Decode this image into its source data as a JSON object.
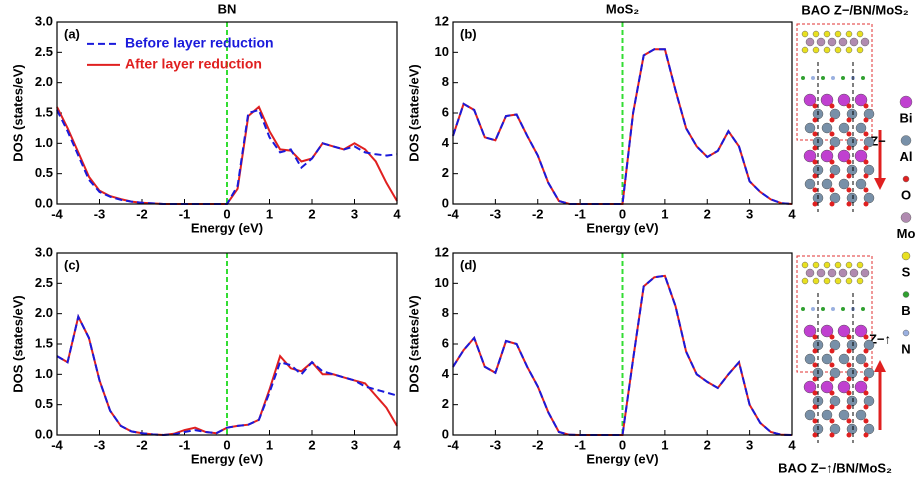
{
  "chart_data": [
    {
      "type": "line",
      "title": "BN",
      "panel_label": "(a)",
      "xlabel": "Energy (eV)",
      "ylabel": "DOS (states/eV)",
      "x": [
        -4,
        -3.75,
        -3.5,
        -3.25,
        -3,
        -2.75,
        -2.5,
        -2.25,
        -2,
        -1.75,
        -1.5,
        -1.25,
        -1,
        -0.75,
        -0.5,
        -0.25,
        0,
        0.25,
        0.5,
        0.75,
        1,
        1.25,
        1.5,
        1.75,
        2,
        2.25,
        2.5,
        2.75,
        3,
        3.25,
        3.5,
        3.75,
        4
      ],
      "xlim": [
        -4,
        4
      ],
      "xticks": [
        -4,
        -3,
        -2,
        -1,
        0,
        1,
        2,
        3,
        4
      ],
      "ylim": [
        0,
        3
      ],
      "yticks": [
        {
          "value": 0,
          "label": "0.0"
        },
        {
          "value": 0.5,
          "label": "0.5"
        },
        {
          "value": 1,
          "label": "1.0"
        },
        {
          "value": 1.5,
          "label": "1.5"
        },
        {
          "value": 2,
          "label": "2.0"
        },
        {
          "value": 2.5,
          "label": "2.5"
        },
        {
          "value": 3,
          "label": "3.0"
        }
      ],
      "vline": 0,
      "vline_color": "#33dd33",
      "legend": "upper left",
      "series": [
        {
          "name": "Before layer reduction",
          "color": "#1a1adb",
          "dash": true,
          "values": [
            1.55,
            1.2,
            0.8,
            0.4,
            0.2,
            0.12,
            0.07,
            0.04,
            0.02,
            0.01,
            0,
            0,
            0,
            0,
            0,
            0,
            0,
            0.3,
            1.5,
            1.55,
            1.1,
            0.85,
            0.9,
            0.6,
            0.75,
            1.0,
            0.95,
            0.9,
            0.95,
            0.85,
            0.82,
            0.8,
            0.82
          ]
        },
        {
          "name": "After layer reduction",
          "color": "#e02020",
          "dash": false,
          "values": [
            1.6,
            1.25,
            0.85,
            0.45,
            0.22,
            0.13,
            0.08,
            0.04,
            0.02,
            0.01,
            0,
            0,
            0,
            0,
            0,
            0,
            0,
            0.25,
            1.45,
            1.6,
            1.2,
            0.9,
            0.88,
            0.7,
            0.75,
            1.0,
            0.95,
            0.9,
            1.0,
            0.9,
            0.7,
            0.35,
            0.05
          ]
        }
      ]
    },
    {
      "type": "line",
      "title": "MoS₂",
      "panel_label": "(b)",
      "xlabel": "Energy (eV)",
      "ylabel": "DOS (states/eV)",
      "x": [
        -4,
        -3.75,
        -3.5,
        -3.25,
        -3,
        -2.75,
        -2.5,
        -2.25,
        -2,
        -1.75,
        -1.5,
        -1.25,
        -1,
        -0.75,
        -0.5,
        -0.25,
        0,
        0.25,
        0.5,
        0.75,
        1,
        1.25,
        1.5,
        1.75,
        2,
        2.25,
        2.5,
        2.75,
        3,
        3.25,
        3.5,
        3.75,
        4
      ],
      "xlim": [
        -4,
        4
      ],
      "xticks": [
        -4,
        -3,
        -2,
        -1,
        0,
        1,
        2,
        3,
        4
      ],
      "ylim": [
        0,
        12
      ],
      "yticks": [
        0,
        2,
        4,
        6,
        8,
        10,
        12
      ],
      "vline": 0,
      "vline_color": "#33dd33",
      "series": [
        {
          "color": "#1a1adb",
          "dash": true,
          "values": [
            4.5,
            6.6,
            6.2,
            4.4,
            4.2,
            5.8,
            5.9,
            4.5,
            3.2,
            1.4,
            0.2,
            0,
            0,
            0,
            0,
            0,
            0,
            6,
            9.8,
            10.2,
            10.2,
            7.5,
            5,
            3.8,
            3.1,
            3.5,
            4.8,
            3.8,
            1.5,
            0.8,
            0.3,
            0.05,
            0
          ]
        },
        {
          "color": "#e02020",
          "dash": false,
          "values": [
            4.5,
            6.6,
            6.2,
            4.4,
            4.2,
            5.8,
            5.9,
            4.5,
            3.2,
            1.4,
            0.2,
            0,
            0,
            0,
            0,
            0,
            0,
            6,
            9.8,
            10.2,
            10.2,
            7.5,
            5,
            3.8,
            3.1,
            3.5,
            4.8,
            3.8,
            1.5,
            0.8,
            0.3,
            0.05,
            0
          ]
        }
      ]
    },
    {
      "type": "line",
      "panel_label": "(c)",
      "xlabel": "Energy (eV)",
      "ylabel": "DOS (states/eV)",
      "x": [
        -4,
        -3.75,
        -3.5,
        -3.25,
        -3,
        -2.75,
        -2.5,
        -2.25,
        -2,
        -1.75,
        -1.5,
        -1.25,
        -1,
        -0.75,
        -0.5,
        -0.25,
        0,
        0.25,
        0.5,
        0.75,
        1,
        1.25,
        1.5,
        1.75,
        2,
        2.25,
        2.5,
        2.75,
        3,
        3.25,
        3.5,
        3.75,
        4
      ],
      "xlim": [
        -4,
        4
      ],
      "xticks": [
        -4,
        -3,
        -2,
        -1,
        0,
        1,
        2,
        3,
        4
      ],
      "ylim": [
        0,
        3
      ],
      "yticks": [
        {
          "value": 0,
          "label": "0.0"
        },
        {
          "value": 0.5,
          "label": "0.5"
        },
        {
          "value": 1,
          "label": "1.0"
        },
        {
          "value": 1.5,
          "label": "1.5"
        },
        {
          "value": 2,
          "label": "2.0"
        },
        {
          "value": 2.5,
          "label": "2.5"
        },
        {
          "value": 3,
          "label": "3.0"
        }
      ],
      "vline": 0,
      "vline_color": "#33dd33",
      "series": [
        {
          "color": "#1a1adb",
          "dash": true,
          "values": [
            1.3,
            1.2,
            1.95,
            1.6,
            0.9,
            0.4,
            0.15,
            0.06,
            0.03,
            0.01,
            0,
            0.01,
            0.05,
            0.08,
            0.05,
            0.03,
            0.12,
            0.15,
            0.17,
            0.25,
            0.7,
            1.2,
            1.15,
            1.0,
            1.2,
            1.05,
            1.0,
            0.95,
            0.9,
            0.8,
            0.75,
            0.7,
            0.65
          ]
        },
        {
          "color": "#e02020",
          "dash": false,
          "values": [
            1.3,
            1.2,
            1.95,
            1.6,
            0.9,
            0.4,
            0.15,
            0.06,
            0.03,
            0.01,
            0,
            0.02,
            0.08,
            0.12,
            0.05,
            0.03,
            0.12,
            0.15,
            0.17,
            0.25,
            0.75,
            1.3,
            1.1,
            1.05,
            1.2,
            1.0,
            1.0,
            0.95,
            0.9,
            0.85,
            0.65,
            0.45,
            0.15
          ]
        }
      ]
    },
    {
      "type": "line",
      "panel_label": "(d)",
      "xlabel": "Energy (eV)",
      "ylabel": "DOS (states/eV)",
      "x": [
        -4,
        -3.75,
        -3.5,
        -3.25,
        -3,
        -2.75,
        -2.5,
        -2.25,
        -2,
        -1.75,
        -1.5,
        -1.25,
        -1,
        -0.75,
        -0.5,
        -0.25,
        0,
        0.25,
        0.5,
        0.75,
        1,
        1.25,
        1.5,
        1.75,
        2,
        2.25,
        2.5,
        2.75,
        3,
        3.25,
        3.5,
        3.75,
        4
      ],
      "xlim": [
        -4,
        4
      ],
      "xticks": [
        -4,
        -3,
        -2,
        -1,
        0,
        1,
        2,
        3,
        4
      ],
      "ylim": [
        0,
        12
      ],
      "yticks": [
        0,
        2,
        4,
        6,
        8,
        10,
        12
      ],
      "vline": 0,
      "vline_color": "#33dd33",
      "series": [
        {
          "color": "#1a1adb",
          "dash": true,
          "values": [
            4.5,
            5.6,
            6.4,
            4.5,
            4.1,
            6.2,
            6.0,
            4.5,
            3.2,
            1.5,
            0.2,
            0.01,
            0,
            0,
            0,
            0,
            0,
            5,
            9.8,
            10.4,
            10.5,
            8.5,
            5.5,
            4,
            3.5,
            3.1,
            4,
            4.8,
            2,
            0.8,
            0.2,
            0.01,
            0
          ]
        },
        {
          "color": "#e02020",
          "dash": false,
          "values": [
            4.5,
            5.6,
            6.4,
            4.5,
            4.1,
            6.2,
            6.0,
            4.5,
            3.2,
            1.5,
            0.2,
            0.01,
            0,
            0,
            0,
            0,
            0,
            5,
            9.8,
            10.4,
            10.5,
            8.5,
            5.5,
            4,
            3.5,
            3.1,
            4,
            4.8,
            2,
            0.8,
            0.2,
            0.01,
            0
          ]
        }
      ]
    }
  ],
  "structure": {
    "top_title": "BAO Z−/BN/MoS₂",
    "bottom_title": "BAO Z−↑/BN/MoS₂",
    "top_label": "Z−",
    "bottom_label": "Z−↑",
    "elements": [
      "Bi",
      "Al",
      "O",
      "Mo",
      "S",
      "B",
      "N"
    ]
  }
}
